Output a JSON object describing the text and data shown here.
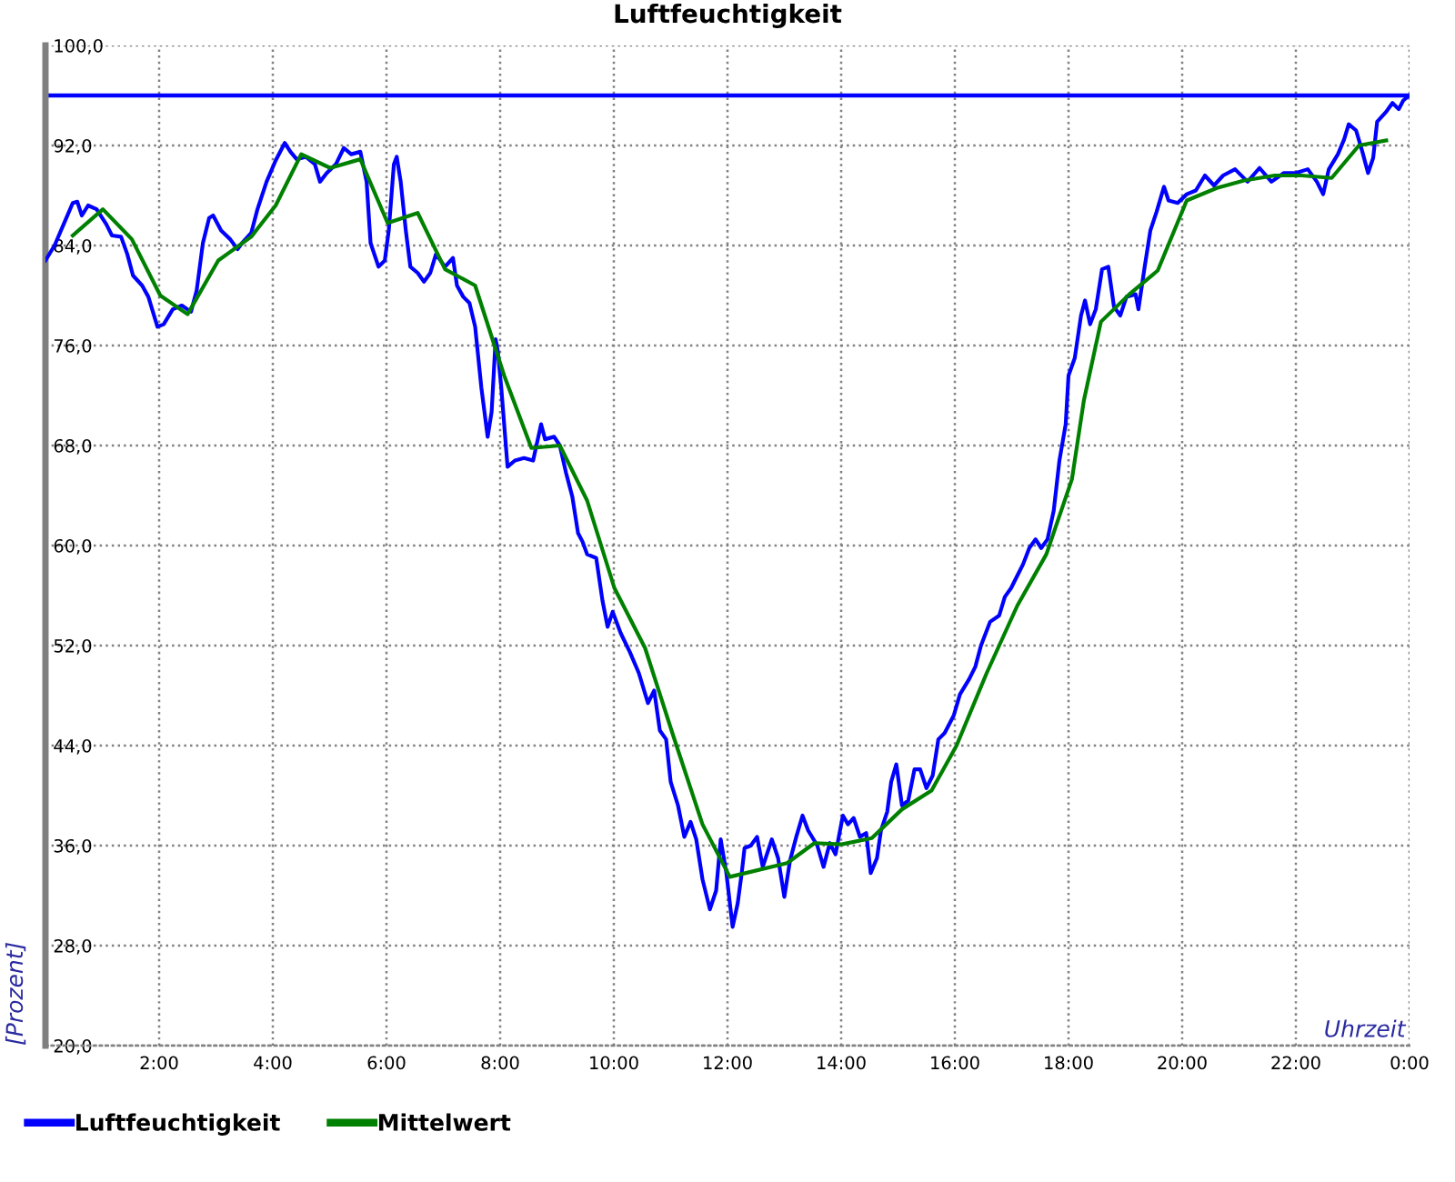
{
  "chart_data": {
    "type": "line",
    "title": "Luftfeuchtigkeit",
    "xlabel": "Uhrzeit",
    "ylabel": "[Prozent]",
    "xlim": [
      0,
      24
    ],
    "xticks": [
      {
        "value": 0,
        "label": null
      },
      {
        "value": 2,
        "label": "2:00"
      },
      {
        "value": 4,
        "label": "4:00"
      },
      {
        "value": 6,
        "label": "6:00"
      },
      {
        "value": 8,
        "label": "8:00"
      },
      {
        "value": 10,
        "label": "10:00"
      },
      {
        "value": 12,
        "label": "12:00"
      },
      {
        "value": 14,
        "label": "14:00"
      },
      {
        "value": 16,
        "label": "16:00"
      },
      {
        "value": 18,
        "label": "18:00"
      },
      {
        "value": 20,
        "label": "20:00"
      },
      {
        "value": 22,
        "label": "22:00"
      },
      {
        "value": 24,
        "label": "0:00"
      }
    ],
    "ylim": [
      20,
      100
    ],
    "yticks": [
      {
        "value": 20,
        "label": "20,0"
      },
      {
        "value": 28,
        "label": "28,0"
      },
      {
        "value": 36,
        "label": "36,0"
      },
      {
        "value": 44,
        "label": "44,0"
      },
      {
        "value": 52,
        "label": "52,0"
      },
      {
        "value": 60,
        "label": "60,0"
      },
      {
        "value": 68,
        "label": "68,0"
      },
      {
        "value": 76,
        "label": "76,0"
      },
      {
        "value": 84,
        "label": "84,0"
      },
      {
        "value": 92,
        "label": "92,0"
      },
      {
        "value": 100,
        "label": "100,0"
      }
    ],
    "grid": true,
    "legend": "bottom left",
    "series": [
      {
        "name": "Luftfeuchtigkeit",
        "color": "#0000ff",
        "x": [
          0.0,
          0.16,
          0.32,
          0.48,
          0.56,
          0.64,
          0.75,
          0.9,
          1.07,
          1.17,
          1.33,
          1.44,
          1.54,
          1.7,
          1.81,
          1.97,
          2.08,
          2.24,
          2.4,
          2.56,
          2.66,
          2.77,
          2.88,
          2.95,
          3.09,
          3.25,
          3.38,
          3.46,
          3.62,
          3.73,
          3.89,
          4.05,
          4.21,
          4.31,
          4.42,
          4.58,
          4.74,
          4.83,
          4.95,
          5.11,
          5.25,
          5.38,
          5.54,
          5.65,
          5.72,
          5.86,
          5.97,
          6.04,
          6.13,
          6.18,
          6.25,
          6.34,
          6.42,
          6.55,
          6.66,
          6.77,
          6.87,
          7.03,
          7.17,
          7.24,
          7.35,
          7.46,
          7.56,
          7.67,
          7.78,
          7.85,
          7.92,
          7.96,
          8.02,
          8.13,
          8.26,
          8.42,
          8.58,
          8.72,
          8.79,
          8.95,
          9.05,
          9.16,
          9.27,
          9.37,
          9.45,
          9.53,
          9.69,
          9.8,
          9.89,
          9.98,
          10.12,
          10.28,
          10.44,
          10.6,
          10.71,
          10.81,
          10.92,
          11.0,
          11.13,
          11.24,
          11.35,
          11.45,
          11.56,
          11.69,
          11.8,
          11.88,
          11.98,
          12.09,
          12.18,
          12.25,
          12.3,
          12.41,
          12.52,
          12.62,
          12.78,
          12.89,
          13.0,
          13.1,
          13.21,
          13.32,
          13.42,
          13.58,
          13.69,
          13.8,
          13.9,
          14.03,
          14.12,
          14.22,
          14.33,
          14.44,
          14.52,
          14.63,
          14.7,
          14.81,
          14.88,
          14.97,
          15.07,
          15.18,
          15.29,
          15.39,
          15.5,
          15.61,
          15.71,
          15.82,
          15.98,
          16.09,
          16.25,
          16.36,
          16.46,
          16.62,
          16.78,
          16.88,
          16.99,
          17.1,
          17.2,
          17.31,
          17.42,
          17.52,
          17.63,
          17.74,
          17.84,
          17.95,
          18.0,
          18.11,
          18.22,
          18.29,
          18.38,
          18.48,
          18.59,
          18.7,
          18.8,
          18.91,
          19.02,
          19.18,
          19.23,
          19.34,
          19.44,
          19.55,
          19.68,
          19.76,
          19.92,
          20.08,
          20.24,
          20.4,
          20.56,
          20.72,
          20.93,
          21.15,
          21.36,
          21.57,
          21.79,
          22.0,
          22.21,
          22.37,
          22.48,
          22.58,
          22.74,
          22.85,
          22.93,
          23.06,
          23.17,
          23.27,
          23.36,
          23.43,
          23.59,
          23.7,
          23.81,
          23.89,
          23.97
        ],
        "values": [
          82.8,
          84.0,
          85.7,
          87.4,
          87.5,
          86.4,
          87.2,
          86.9,
          85.7,
          84.8,
          84.7,
          83.3,
          81.6,
          80.8,
          79.9,
          77.5,
          77.7,
          78.9,
          79.2,
          78.7,
          80.4,
          84.2,
          86.2,
          86.4,
          85.2,
          84.5,
          83.7,
          84.2,
          85.0,
          86.9,
          89.1,
          90.8,
          92.2,
          91.5,
          90.9,
          91.1,
          90.5,
          89.1,
          89.8,
          90.5,
          91.8,
          91.3,
          91.5,
          89.1,
          84.2,
          82.3,
          82.8,
          85.2,
          90.5,
          91.1,
          89.1,
          85.2,
          82.3,
          81.8,
          81.1,
          81.8,
          83.3,
          82.3,
          83.0,
          80.8,
          79.9,
          79.4,
          77.5,
          72.6,
          68.7,
          70.7,
          76.5,
          75.5,
          72.6,
          66.3,
          66.8,
          67.0,
          66.8,
          69.7,
          68.5,
          68.7,
          68.0,
          65.8,
          63.9,
          61.0,
          60.3,
          59.3,
          59.0,
          55.6,
          53.5,
          54.7,
          53.0,
          51.5,
          49.8,
          47.4,
          48.4,
          45.2,
          44.5,
          41.1,
          39.2,
          36.7,
          37.9,
          36.5,
          33.3,
          30.9,
          32.4,
          36.5,
          33.8,
          29.5,
          31.4,
          33.8,
          35.8,
          36.0,
          36.7,
          34.3,
          36.5,
          35.0,
          31.9,
          34.8,
          36.7,
          38.4,
          37.2,
          36.0,
          34.3,
          36.2,
          35.3,
          38.4,
          37.7,
          38.2,
          36.7,
          37.0,
          33.8,
          35.0,
          37.2,
          38.7,
          41.1,
          42.5,
          39.2,
          39.6,
          42.1,
          42.1,
          40.6,
          41.6,
          44.5,
          45.0,
          46.4,
          48.1,
          49.3,
          50.3,
          52.0,
          53.9,
          54.4,
          55.9,
          56.6,
          57.6,
          58.5,
          59.8,
          60.5,
          59.8,
          60.5,
          62.8,
          66.8,
          69.7,
          73.6,
          75.0,
          78.4,
          79.6,
          77.7,
          78.9,
          82.1,
          82.3,
          79.1,
          78.4,
          79.9,
          80.1,
          78.9,
          82.3,
          85.2,
          86.7,
          88.7,
          87.6,
          87.4,
          88.1,
          88.4,
          89.6,
          88.8,
          89.6,
          90.1,
          89.1,
          90.2,
          89.1,
          89.8,
          89.8,
          90.1,
          89.1,
          88.1,
          90.1,
          91.3,
          92.5,
          93.7,
          93.2,
          91.5,
          89.8,
          91.0,
          93.9,
          94.7,
          95.4,
          94.9,
          95.6,
          95.9
        ]
      },
      {
        "name": "Mittelwert",
        "color": "#008000",
        "x": [
          0.48,
          1.01,
          1.52,
          2.02,
          2.5,
          3.04,
          3.62,
          4.05,
          4.5,
          5.01,
          5.54,
          6.02,
          6.55,
          7.03,
          7.56,
          8.07,
          8.55,
          9.05,
          9.53,
          10.01,
          10.55,
          11.03,
          11.56,
          12.04,
          13.05,
          13.53,
          14.01,
          14.54,
          15.07,
          15.59,
          16.03,
          16.56,
          17.1,
          17.61,
          18.06,
          18.27,
          18.57,
          19.07,
          19.57,
          20.08,
          20.61,
          21.09,
          21.63,
          22.1,
          22.63,
          23.11,
          23.59
        ],
        "values": [
          84.8,
          86.9,
          84.5,
          80.0,
          78.5,
          82.8,
          84.7,
          87.2,
          91.3,
          90.2,
          90.9,
          85.8,
          86.6,
          82.1,
          80.8,
          73.6,
          67.8,
          68.0,
          63.6,
          56.6,
          51.8,
          45.0,
          37.7,
          33.5,
          34.6,
          36.2,
          36.1,
          36.6,
          38.9,
          40.4,
          44.0,
          49.8,
          55.2,
          59.3,
          65.3,
          71.6,
          77.9,
          80.1,
          82.0,
          87.6,
          88.6,
          89.2,
          89.6,
          89.6,
          89.4,
          92.0,
          92.4
        ]
      }
    ],
    "ref_lines": [
      {
        "axis": "y",
        "value": 96,
        "color": "#0000ff",
        "line_style": "solid"
      }
    ]
  }
}
